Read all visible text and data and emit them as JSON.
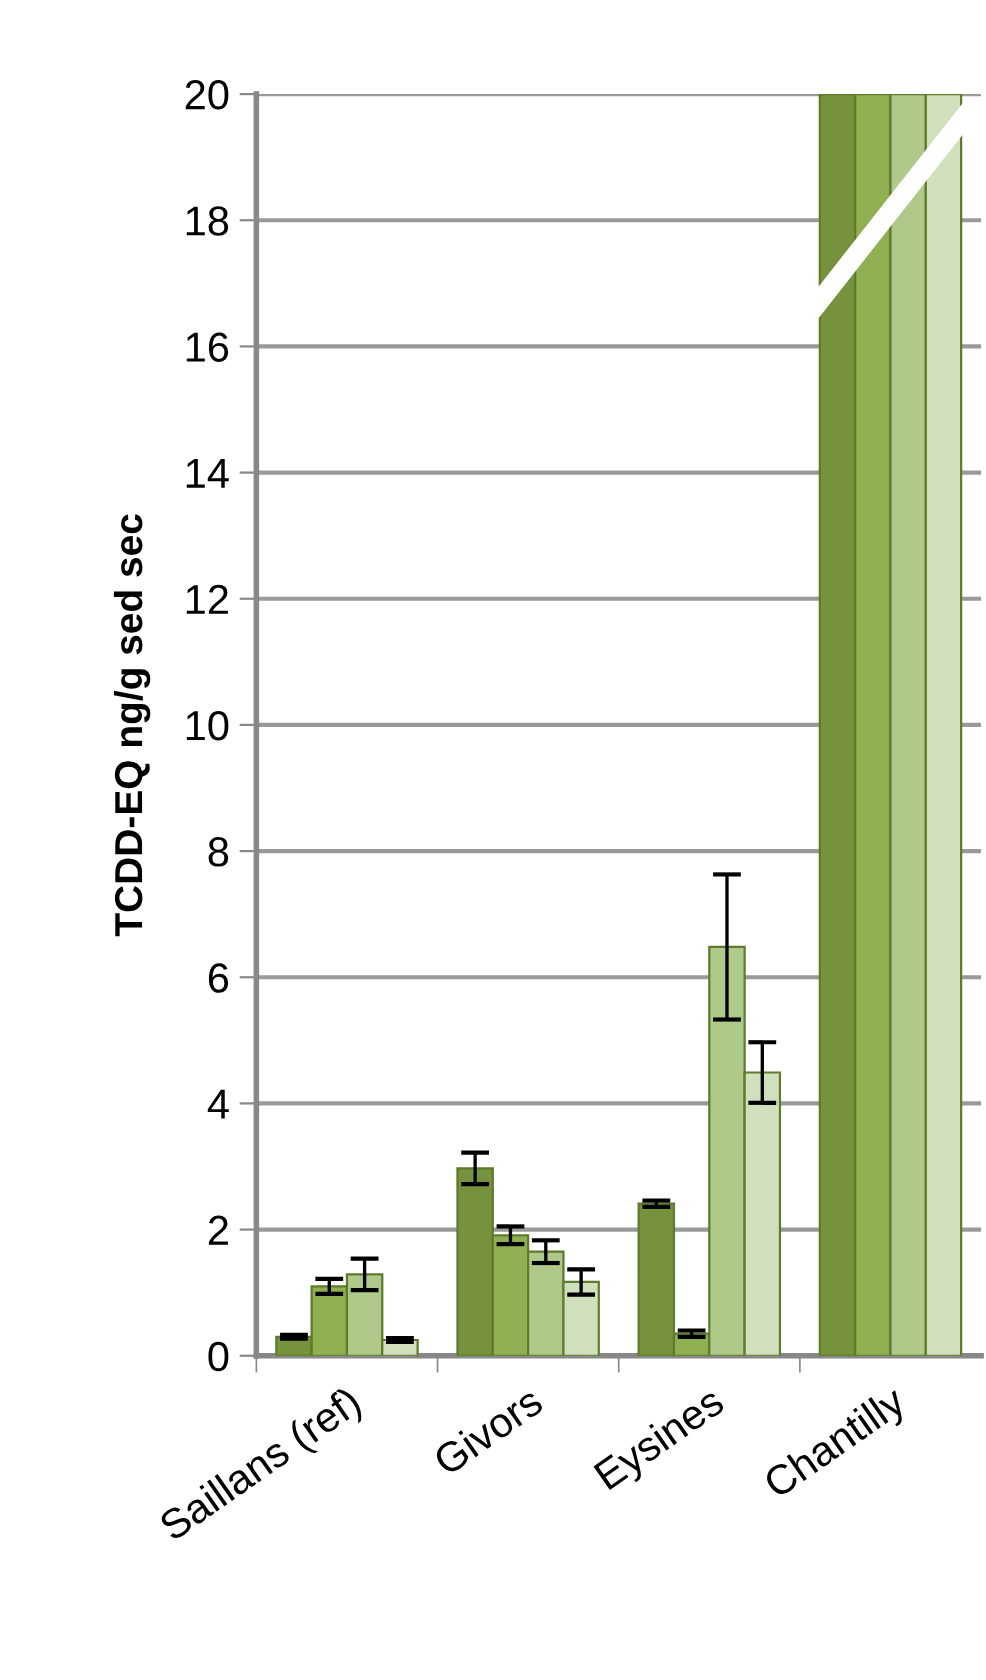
{
  "chart_data": {
    "type": "bar",
    "ylabel": "TCDD-EQ ng/g sed sec",
    "categories": [
      "Saillans (ref)",
      "Givors",
      "Eysines",
      "Chantilly"
    ],
    "series": [
      {
        "color": "#76923c",
        "values": [
          0.3,
          2.97,
          2.41,
          20
        ],
        "errors": [
          0.03,
          0.25,
          0.05,
          null
        ]
      },
      {
        "color": "#8fb050",
        "values": [
          1.1,
          1.91,
          0.35,
          20
        ],
        "errors": [
          0.12,
          0.14,
          0.05,
          null
        ]
      },
      {
        "color": "#aec98a",
        "values": [
          1.29,
          1.65,
          6.48,
          20
        ],
        "errors": [
          0.25,
          0.18,
          1.15,
          null
        ]
      },
      {
        "color": "#d1e0bc",
        "values": [
          0.25,
          1.17,
          4.49,
          20
        ],
        "errors": [
          0.03,
          0.2,
          0.48,
          null
        ]
      }
    ],
    "ylim": [
      0,
      20
    ],
    "yticks": [
      0,
      2,
      4,
      6,
      8,
      10,
      12,
      14,
      16,
      18,
      20
    ],
    "grid": "y",
    "legend": false
  }
}
